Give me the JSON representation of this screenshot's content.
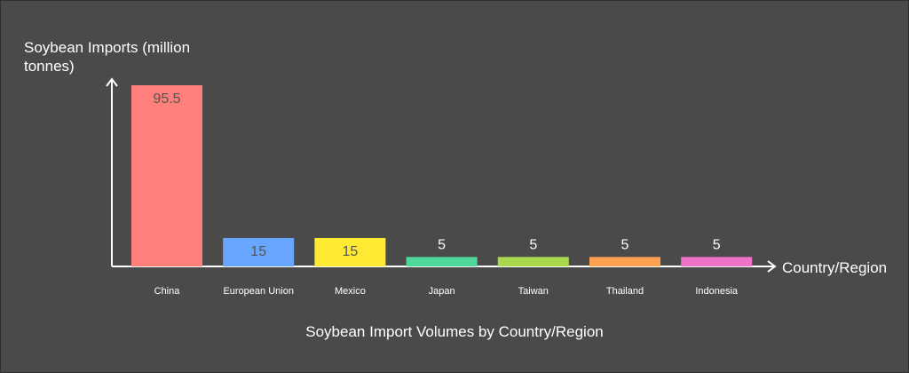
{
  "chart_data": {
    "type": "bar",
    "title": "Soybean Import Volumes by Country/Region",
    "xlabel": "Country/Region",
    "ylabel": "Soybean Imports (million tonnes)",
    "categories": [
      "China",
      "European Union",
      "Mexico",
      "Japan",
      "Taiwan",
      "Thailand",
      "Indonesia"
    ],
    "values": [
      95.5,
      15,
      15,
      5,
      5,
      5,
      5
    ],
    "value_labels": [
      "95.5",
      "15",
      "15",
      "5",
      "5",
      "5",
      "5"
    ],
    "colors": [
      "#ff7f7b",
      "#69a6ff",
      "#ffea33",
      "#4fd69b",
      "#a9d84c",
      "#ffa150",
      "#ee72c8"
    ],
    "ylim": [
      0,
      95.5
    ],
    "grid": false,
    "legend": "none"
  }
}
